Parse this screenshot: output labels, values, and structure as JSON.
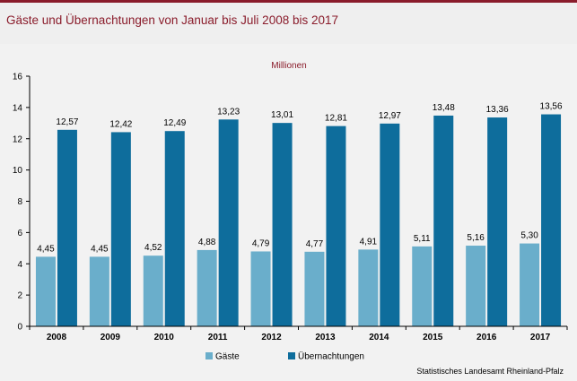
{
  "title": "Gäste und Übernachtungen von Januar bis Juli 2008 bis 2017",
  "source": "Statistisches Landesamt Rheinland-Pfalz",
  "colors": {
    "gaeste": "#6aaecb",
    "uebernachtungen": "#0e6d9c",
    "accent": "#8a1c2b"
  },
  "chart_data": {
    "type": "bar",
    "unit_label": "Millionen",
    "categories": [
      "2008",
      "2009",
      "2010",
      "2011",
      "2012",
      "2013",
      "2014",
      "2015",
      "2016",
      "2017"
    ],
    "series": [
      {
        "name": "Gäste",
        "values": [
          4.45,
          4.45,
          4.52,
          4.88,
          4.79,
          4.77,
          4.91,
          5.11,
          5.16,
          5.3
        ],
        "labels": [
          "4,45",
          "4,45",
          "4,52",
          "4,88",
          "4,79",
          "4,77",
          "4,91",
          "5,11",
          "5,16",
          "5,30"
        ]
      },
      {
        "name": "Übernachtungen",
        "values": [
          12.57,
          12.42,
          12.49,
          13.23,
          13.01,
          12.81,
          12.97,
          13.48,
          13.36,
          13.56
        ],
        "labels": [
          "12,57",
          "12,42",
          "12,49",
          "13,23",
          "13,01",
          "12,81",
          "12,97",
          "13,48",
          "13,36",
          "13,56"
        ]
      }
    ],
    "ylim": [
      0,
      16
    ],
    "yticks": [
      "0",
      "2",
      "4",
      "6",
      "8",
      "10",
      "12",
      "14",
      "16"
    ],
    "legend_position": "bottom",
    "grid": false
  }
}
